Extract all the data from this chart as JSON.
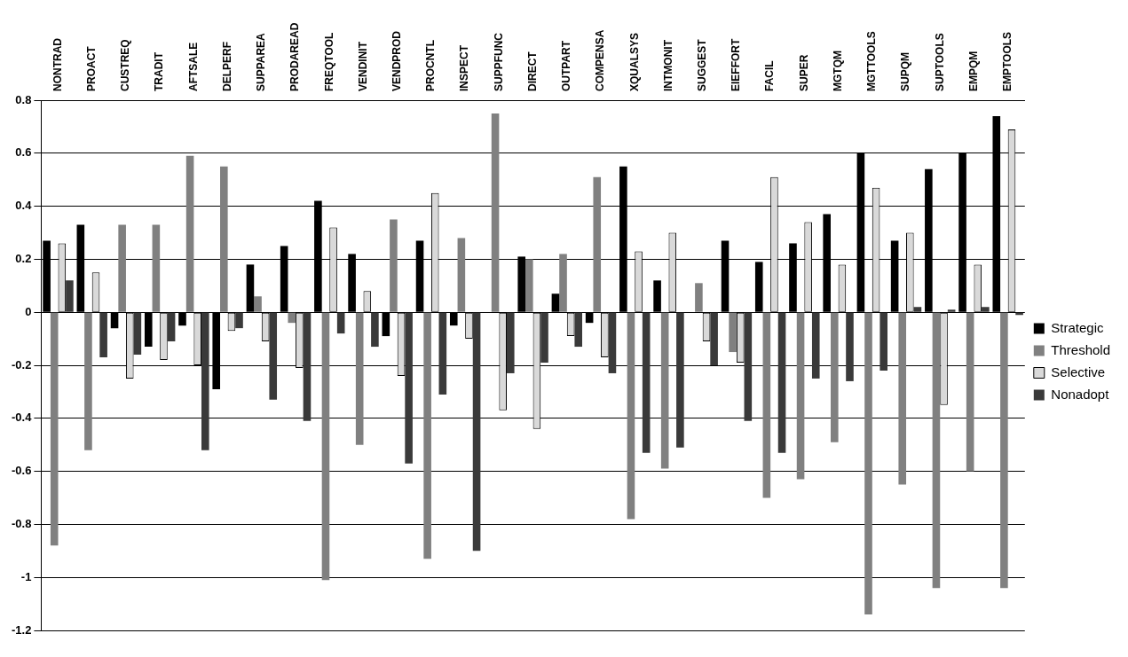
{
  "chart_data": {
    "type": "bar",
    "categories": [
      "NONTRAD",
      "PROACT",
      "CUSTREQ",
      "TRADIT",
      "AFTSALE",
      "DELPERF",
      "SUPPAREA",
      "PRODAREAD",
      "FREQTOOL",
      "VENDINIT",
      "VENDPROD",
      "PROCNTL",
      "INSPECT",
      "SUPPFUNC",
      "DIRECT",
      "OUTPART",
      "COMPENSA",
      "XQUALSYS",
      "INTMONIT",
      "SUGGEST",
      "EIEFFORT",
      "FACIL",
      "SUPER",
      "MGTQM",
      "MGTTOOLS",
      "SUPQM",
      "SUPTOOLS",
      "EMPQM",
      "EMPTOOLS"
    ],
    "series": [
      {
        "name": "Strategic",
        "color": "#000000",
        "values": [
          0.27,
          0.33,
          -0.06,
          -0.13,
          -0.05,
          -0.29,
          0.18,
          0.25,
          0.42,
          0.22,
          -0.09,
          0.27,
          -0.05,
          0,
          0.21,
          0.07,
          -0.04,
          0.55,
          0.12,
          0,
          0.27,
          0.19,
          0.26,
          0.37,
          0.6,
          0.27,
          0.54,
          0.6,
          0.74
        ]
      },
      {
        "name": "Threshold",
        "color": "#808080",
        "values": [
          -0.88,
          -0.52,
          0.33,
          0.33,
          0.59,
          0.55,
          0.06,
          -0.04,
          -1.01,
          -0.5,
          0.35,
          -0.93,
          0.28,
          0.75,
          0.2,
          0.22,
          0.51,
          -0.78,
          -0.59,
          0.11,
          -0.15,
          -0.7,
          -0.63,
          -0.49,
          -1.14,
          -0.65,
          -1.04,
          -0.6,
          -1.04
        ]
      },
      {
        "name": "Selective",
        "color": "#d9d9d9",
        "values": [
          0.26,
          0.15,
          -0.25,
          -0.18,
          -0.2,
          -0.07,
          -0.11,
          -0.21,
          0.32,
          0.08,
          -0.24,
          0.45,
          -0.1,
          -0.37,
          -0.44,
          -0.09,
          -0.17,
          0.23,
          0.3,
          -0.11,
          -0.19,
          0.51,
          0.34,
          0.18,
          0.47,
          0.3,
          -0.35,
          0.18,
          0.69
        ]
      },
      {
        "name": "Nonadopt",
        "color": "#3a3a3a",
        "values": [
          0.12,
          -0.17,
          -0.16,
          -0.11,
          -0.52,
          -0.06,
          -0.33,
          -0.41,
          -0.08,
          -0.13,
          -0.57,
          -0.31,
          -0.9,
          -0.23,
          -0.19,
          -0.13,
          -0.23,
          -0.53,
          -0.51,
          -0.2,
          -0.41,
          -0.53,
          -0.25,
          -0.26,
          -0.22,
          0.02,
          0.01,
          0.02,
          -0.01
        ]
      }
    ],
    "ylim": [
      -1.2,
      0.8
    ],
    "yticks": [
      -1.2,
      -1,
      -0.8,
      -0.6,
      -0.4,
      -0.2,
      0,
      0.2,
      0.4,
      0.6,
      0.8
    ],
    "grid": "y",
    "legend": "right"
  }
}
